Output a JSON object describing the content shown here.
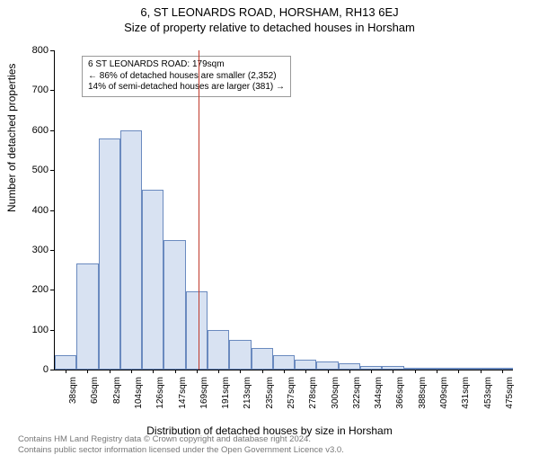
{
  "header": {
    "address": "6, ST LEONARDS ROAD, HORSHAM, RH13 6EJ",
    "subtitle": "Size of property relative to detached houses in Horsham"
  },
  "chart": {
    "type": "histogram",
    "ylabel": "Number of detached properties",
    "xlabel": "Distribution of detached houses by size in Horsham",
    "ylim": [
      0,
      800
    ],
    "ytick_step": 100,
    "xcategories": [
      "38sqm",
      "60sqm",
      "82sqm",
      "104sqm",
      "126sqm",
      "147sqm",
      "169sqm",
      "191sqm",
      "213sqm",
      "235sqm",
      "257sqm",
      "278sqm",
      "300sqm",
      "322sqm",
      "344sqm",
      "366sqm",
      "388sqm",
      "409sqm",
      "431sqm",
      "453sqm",
      "475sqm"
    ],
    "values": [
      35,
      265,
      580,
      600,
      450,
      325,
      195,
      100,
      75,
      55,
      35,
      25,
      20,
      15,
      10,
      8,
      3,
      3,
      3,
      2,
      2
    ],
    "bar_fill": "#d8e2f2",
    "bar_border": "#6a8abf",
    "background_color": "#ffffff",
    "axis_color": "#000000",
    "marker": {
      "index_position": 6.6,
      "color": "#c0392b"
    },
    "callout": {
      "line1": "6 ST LEONARDS ROAD: 179sqm",
      "line2": "← 86% of detached houses are smaller (2,352)",
      "line3": "14% of semi-detached houses are larger (381) →"
    }
  },
  "footer": {
    "line1": "Contains HM Land Registry data © Crown copyright and database right 2024.",
    "line2": "Contains public sector information licensed under the Open Government Licence v3.0."
  }
}
